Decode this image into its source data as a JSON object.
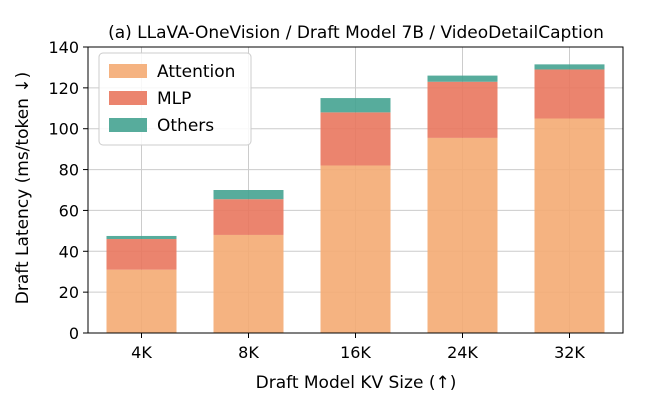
{
  "chart_data": {
    "type": "bar",
    "stacked": true,
    "title": "(a) LLaVA-OneVision / Draft Model 7B / VideoDetailCaption",
    "xlabel": "Draft Model KV Size (↑)",
    "ylabel": "Draft Latency (ms/token ↓)",
    "categories": [
      "4K",
      "8K",
      "16K",
      "24K",
      "32K"
    ],
    "ylim": [
      0,
      140
    ],
    "yticks": [
      0,
      20,
      40,
      60,
      80,
      100,
      120,
      140
    ],
    "grid": true,
    "legend_position": "top-left",
    "series": [
      {
        "name": "Attention",
        "color": "#F4AB73",
        "values": [
          31,
          48,
          82,
          95.5,
          105
        ]
      },
      {
        "name": "MLP",
        "color": "#E9775E",
        "values": [
          15,
          17.5,
          26,
          27.5,
          24
        ]
      },
      {
        "name": "Others",
        "color": "#45A391",
        "values": [
          1.5,
          4.5,
          7,
          3,
          2.5
        ]
      }
    ]
  }
}
